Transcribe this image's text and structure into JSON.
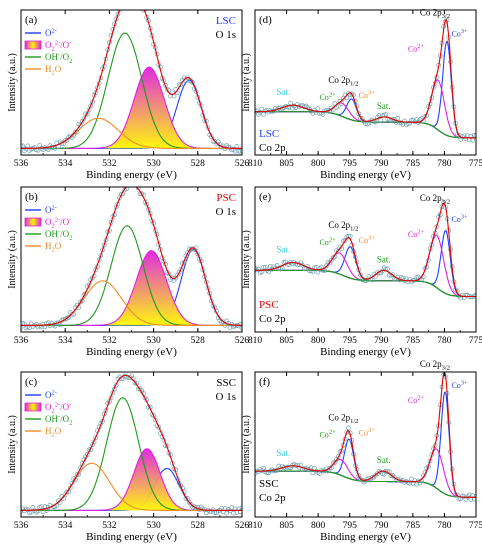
{
  "colors": {
    "blue": "#1f3fff",
    "magenta": "#e020e0",
    "yellow": "#fff700",
    "green": "#1e9a1e",
    "orange": "#f28c28",
    "cyan": "#3cc8d8",
    "red": "#e00000",
    "data_point": "#6fa0b0",
    "axis": "#000000"
  },
  "chart_data": [
    {
      "panel": "(a)",
      "type": "line",
      "sample": "LSC",
      "core": "O 1s",
      "xlabel": "Binding energy (eV)",
      "ylabel": "Intensity (a.u.)",
      "xlim": [
        536,
        526
      ],
      "xticks": [
        536,
        534,
        532,
        530,
        528,
        526
      ],
      "legend": [
        "O2-",
        "O22-/O-",
        "OH-/O2",
        "H2O"
      ],
      "components": [
        {
          "name": "O2-",
          "center": 528.4,
          "height": 0.52,
          "fwhm": 1.3
        },
        {
          "name": "O22-/O-",
          "center": 530.2,
          "height": 0.62,
          "fwhm": 1.6
        },
        {
          "name": "OH-/O2",
          "center": 531.3,
          "height": 0.88,
          "fwhm": 1.8
        },
        {
          "name": "H2O",
          "center": 532.5,
          "height": 0.23,
          "fwhm": 2.1
        }
      ],
      "baseline": 0.02
    },
    {
      "panel": "(b)",
      "type": "line",
      "sample": "PSC",
      "core": "O 1s",
      "xlabel": "Binding energy (eV)",
      "ylabel": "Intensity (a.u.)",
      "xlim": [
        536,
        526
      ],
      "xticks": [
        536,
        534,
        532,
        530,
        528,
        526
      ],
      "legend": [
        "O2-",
        "O22-/O-",
        "OH-/O2",
        "H2O"
      ],
      "components": [
        {
          "name": "O2-",
          "center": 528.2,
          "height": 0.58,
          "fwhm": 1.3
        },
        {
          "name": "O22-/O-",
          "center": 530.1,
          "height": 0.57,
          "fwhm": 1.6
        },
        {
          "name": "OH-/O2",
          "center": 531.2,
          "height": 0.76,
          "fwhm": 1.7
        },
        {
          "name": "H2O",
          "center": 532.3,
          "height": 0.34,
          "fwhm": 2.0
        }
      ],
      "baseline": 0.02
    },
    {
      "panel": "(c)",
      "type": "line",
      "sample": "SSC",
      "core": "O 1s",
      "xlabel": "Binding energy (eV)",
      "ylabel": "Intensity (a.u.)",
      "xlim": [
        536,
        526
      ],
      "xticks": [
        536,
        534,
        532,
        530,
        528,
        526
      ],
      "legend": [
        "O2-",
        "O22-/O-",
        "OH-/O2",
        "H2O"
      ],
      "components": [
        {
          "name": "O2-",
          "center": 529.4,
          "height": 0.32,
          "fwhm": 1.3
        },
        {
          "name": "O22-/O-",
          "center": 530.3,
          "height": 0.47,
          "fwhm": 1.4
        },
        {
          "name": "OH-/O2",
          "center": 531.4,
          "height": 0.86,
          "fwhm": 1.7
        },
        {
          "name": "H2O",
          "center": 532.8,
          "height": 0.36,
          "fwhm": 1.9
        }
      ],
      "baseline": 0.02
    },
    {
      "panel": "(d)",
      "type": "line",
      "sample": "LSC",
      "core": "Co 2p",
      "xlabel": "Binding energy (eV)",
      "ylabel": "Intensity (a.u.)",
      "xlim": [
        810,
        775
      ],
      "xticks": [
        810,
        805,
        800,
        795,
        790,
        785,
        780,
        775
      ],
      "peak_labels": {
        "p12": "Co 2p1/2",
        "p32": "Co 2p3/2",
        "co2": "Co2+",
        "co3": "Co3+",
        "sat": "Sat."
      },
      "components": [
        {
          "name": "Co3+ 2p3/2",
          "center": 779.6,
          "height": 0.72,
          "fwhm": 1.6
        },
        {
          "name": "Co2+ 2p3/2",
          "center": 781.0,
          "height": 0.38,
          "fwhm": 2.4
        },
        {
          "name": "Co3+ 2p1/2",
          "center": 794.7,
          "height": 0.16,
          "fwhm": 1.8
        },
        {
          "name": "Co2+ 2p1/2",
          "center": 796.2,
          "height": 0.1,
          "fwhm": 2.6
        },
        {
          "name": "Sat.",
          "center": 789.5,
          "height": 0.04,
          "fwhm": 3.0
        },
        {
          "name": "Sat.",
          "center": 804.0,
          "height": 0.05,
          "fwhm": 4.0
        }
      ],
      "baseline": 0.18
    },
    {
      "panel": "(e)",
      "type": "line",
      "sample": "PSC",
      "core": "Co 2p",
      "xlabel": "Binding energy (eV)",
      "ylabel": "Intensity (a.u.)",
      "xlim": [
        810,
        775
      ],
      "xticks": [
        810,
        805,
        800,
        795,
        790,
        785,
        780,
        775
      ],
      "peak_labels": {
        "p12": "Co 2p1/2",
        "p32": "Co 2p3/2",
        "co2": "Co2+",
        "co3": "Co3+",
        "sat": "Sat."
      },
      "components": [
        {
          "name": "Co3+ 2p3/2",
          "center": 779.8,
          "height": 0.48,
          "fwhm": 1.7
        },
        {
          "name": "Co2+ 2p3/2",
          "center": 781.2,
          "height": 0.4,
          "fwhm": 2.6
        },
        {
          "name": "Co3+ 2p1/2",
          "center": 794.9,
          "height": 0.24,
          "fwhm": 2.0
        },
        {
          "name": "Co2+ 2p1/2",
          "center": 796.6,
          "height": 0.16,
          "fwhm": 2.8
        },
        {
          "name": "Sat.",
          "center": 789.6,
          "height": 0.08,
          "fwhm": 3.0
        },
        {
          "name": "Sat.",
          "center": 804.0,
          "height": 0.06,
          "fwhm": 4.0
        }
      ],
      "baseline": 0.32
    },
    {
      "panel": "(f)",
      "type": "line",
      "sample": "SSC",
      "core": "Co 2p",
      "xlabel": "Binding energy (eV)",
      "ylabel": "Intensity (a.u.)",
      "xlim": [
        810,
        775
      ],
      "xticks": [
        810,
        805,
        800,
        795,
        790,
        785,
        780,
        775
      ],
      "peak_labels": {
        "p12": "Co 2p1/2",
        "p32": "Co 2p3/2",
        "co2": "Co2+",
        "co3": "Co3+",
        "sat": "Sat."
      },
      "components": [
        {
          "name": "Co3+ 2p3/2",
          "center": 779.9,
          "height": 0.78,
          "fwhm": 1.5
        },
        {
          "name": "Co2+ 2p3/2",
          "center": 781.2,
          "height": 0.3,
          "fwhm": 2.5
        },
        {
          "name": "Co3+ 2p1/2",
          "center": 795.1,
          "height": 0.3,
          "fwhm": 1.7
        },
        {
          "name": "Co2+ 2p1/2",
          "center": 796.4,
          "height": 0.12,
          "fwhm": 2.6
        },
        {
          "name": "Sat.",
          "center": 789.7,
          "height": 0.08,
          "fwhm": 3.0
        },
        {
          "name": "Sat.",
          "center": 804.0,
          "height": 0.04,
          "fwhm": 4.0
        }
      ],
      "baseline": 0.2
    }
  ]
}
